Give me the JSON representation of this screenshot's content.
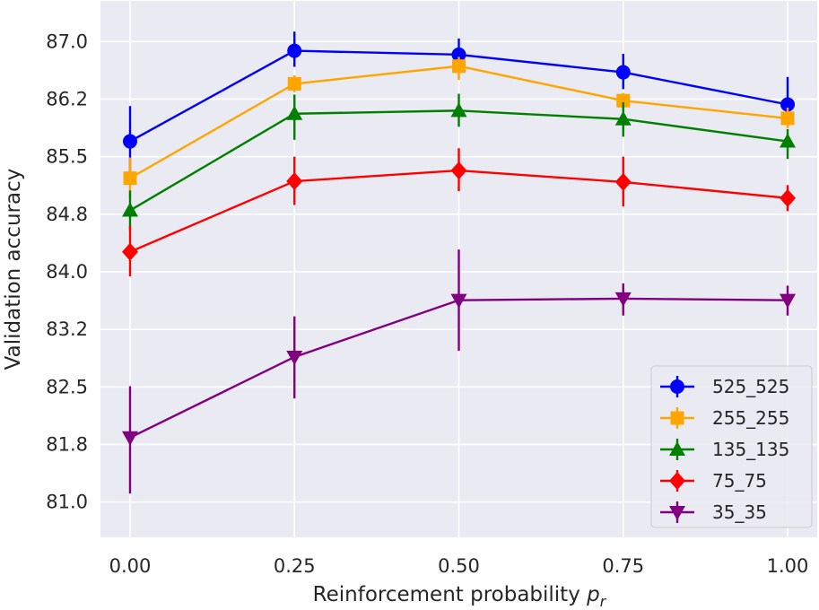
{
  "chart_data": {
    "type": "line",
    "title": "",
    "xlabel": "Reinforcement probability",
    "xlabel_symbol": "p",
    "xlabel_subscript": "r",
    "ylabel": "Validation accuracy",
    "x": [
      0.0,
      0.25,
      0.5,
      0.75,
      1.0
    ],
    "x_tick_values": [
      0.0,
      0.25,
      0.5,
      0.75,
      1.0
    ],
    "x_tick_labels": [
      "0.00",
      "0.25",
      "0.50",
      "0.75",
      "1.00"
    ],
    "y_tick_values": [
      81.0,
      81.75,
      82.5,
      83.25,
      84.0,
      84.75,
      85.5,
      86.25,
      87.0
    ],
    "y_tick_labels": [
      "81.0",
      "81.8",
      "82.5",
      "83.2",
      "84.0",
      "84.8",
      "85.5",
      "86.2",
      "87.0"
    ],
    "xlim": [
      -0.045,
      1.045
    ],
    "ylim": [
      80.54,
      87.53
    ],
    "grid": true,
    "legend_position": "bottom-right",
    "series": [
      {
        "name": "525_525",
        "color": "#0000ff",
        "marker": "circle",
        "values": [
          85.7,
          86.88,
          86.83,
          86.6,
          86.18
        ],
        "error_low": [
          85.2,
          86.67,
          86.64,
          86.38,
          85.97
        ],
        "error_high": [
          86.16,
          87.13,
          87.04,
          86.84,
          86.54
        ]
      },
      {
        "name": "255_255",
        "color": "#ffa500",
        "marker": "square",
        "values": [
          85.22,
          86.45,
          86.68,
          86.23,
          86.0
        ],
        "error_low": [
          84.96,
          86.34,
          86.5,
          86.13,
          85.87
        ],
        "error_high": [
          85.49,
          86.56,
          86.8,
          86.33,
          86.14
        ]
      },
      {
        "name": "135_135",
        "color": "#008000",
        "marker": "triangle-up",
        "values": [
          84.8,
          86.06,
          86.1,
          85.99,
          85.7
        ],
        "error_low": [
          84.54,
          85.72,
          85.89,
          85.76,
          85.47
        ],
        "error_high": [
          85.06,
          86.31,
          86.32,
          86.21,
          85.86
        ]
      },
      {
        "name": "75_75",
        "color": "#ff0000",
        "marker": "diamond",
        "values": [
          84.26,
          85.18,
          85.32,
          85.17,
          84.96
        ],
        "error_low": [
          83.94,
          84.87,
          85.05,
          84.85,
          84.79
        ],
        "error_high": [
          84.6,
          85.5,
          85.61,
          85.5,
          85.13
        ]
      },
      {
        "name": "35_35",
        "color": "#800080",
        "marker": "triangle-down",
        "values": [
          81.84,
          82.89,
          83.63,
          83.65,
          83.63
        ],
        "error_low": [
          81.11,
          82.35,
          82.97,
          83.43,
          83.43
        ],
        "error_high": [
          82.51,
          83.42,
          84.29,
          83.85,
          83.82
        ]
      }
    ]
  }
}
